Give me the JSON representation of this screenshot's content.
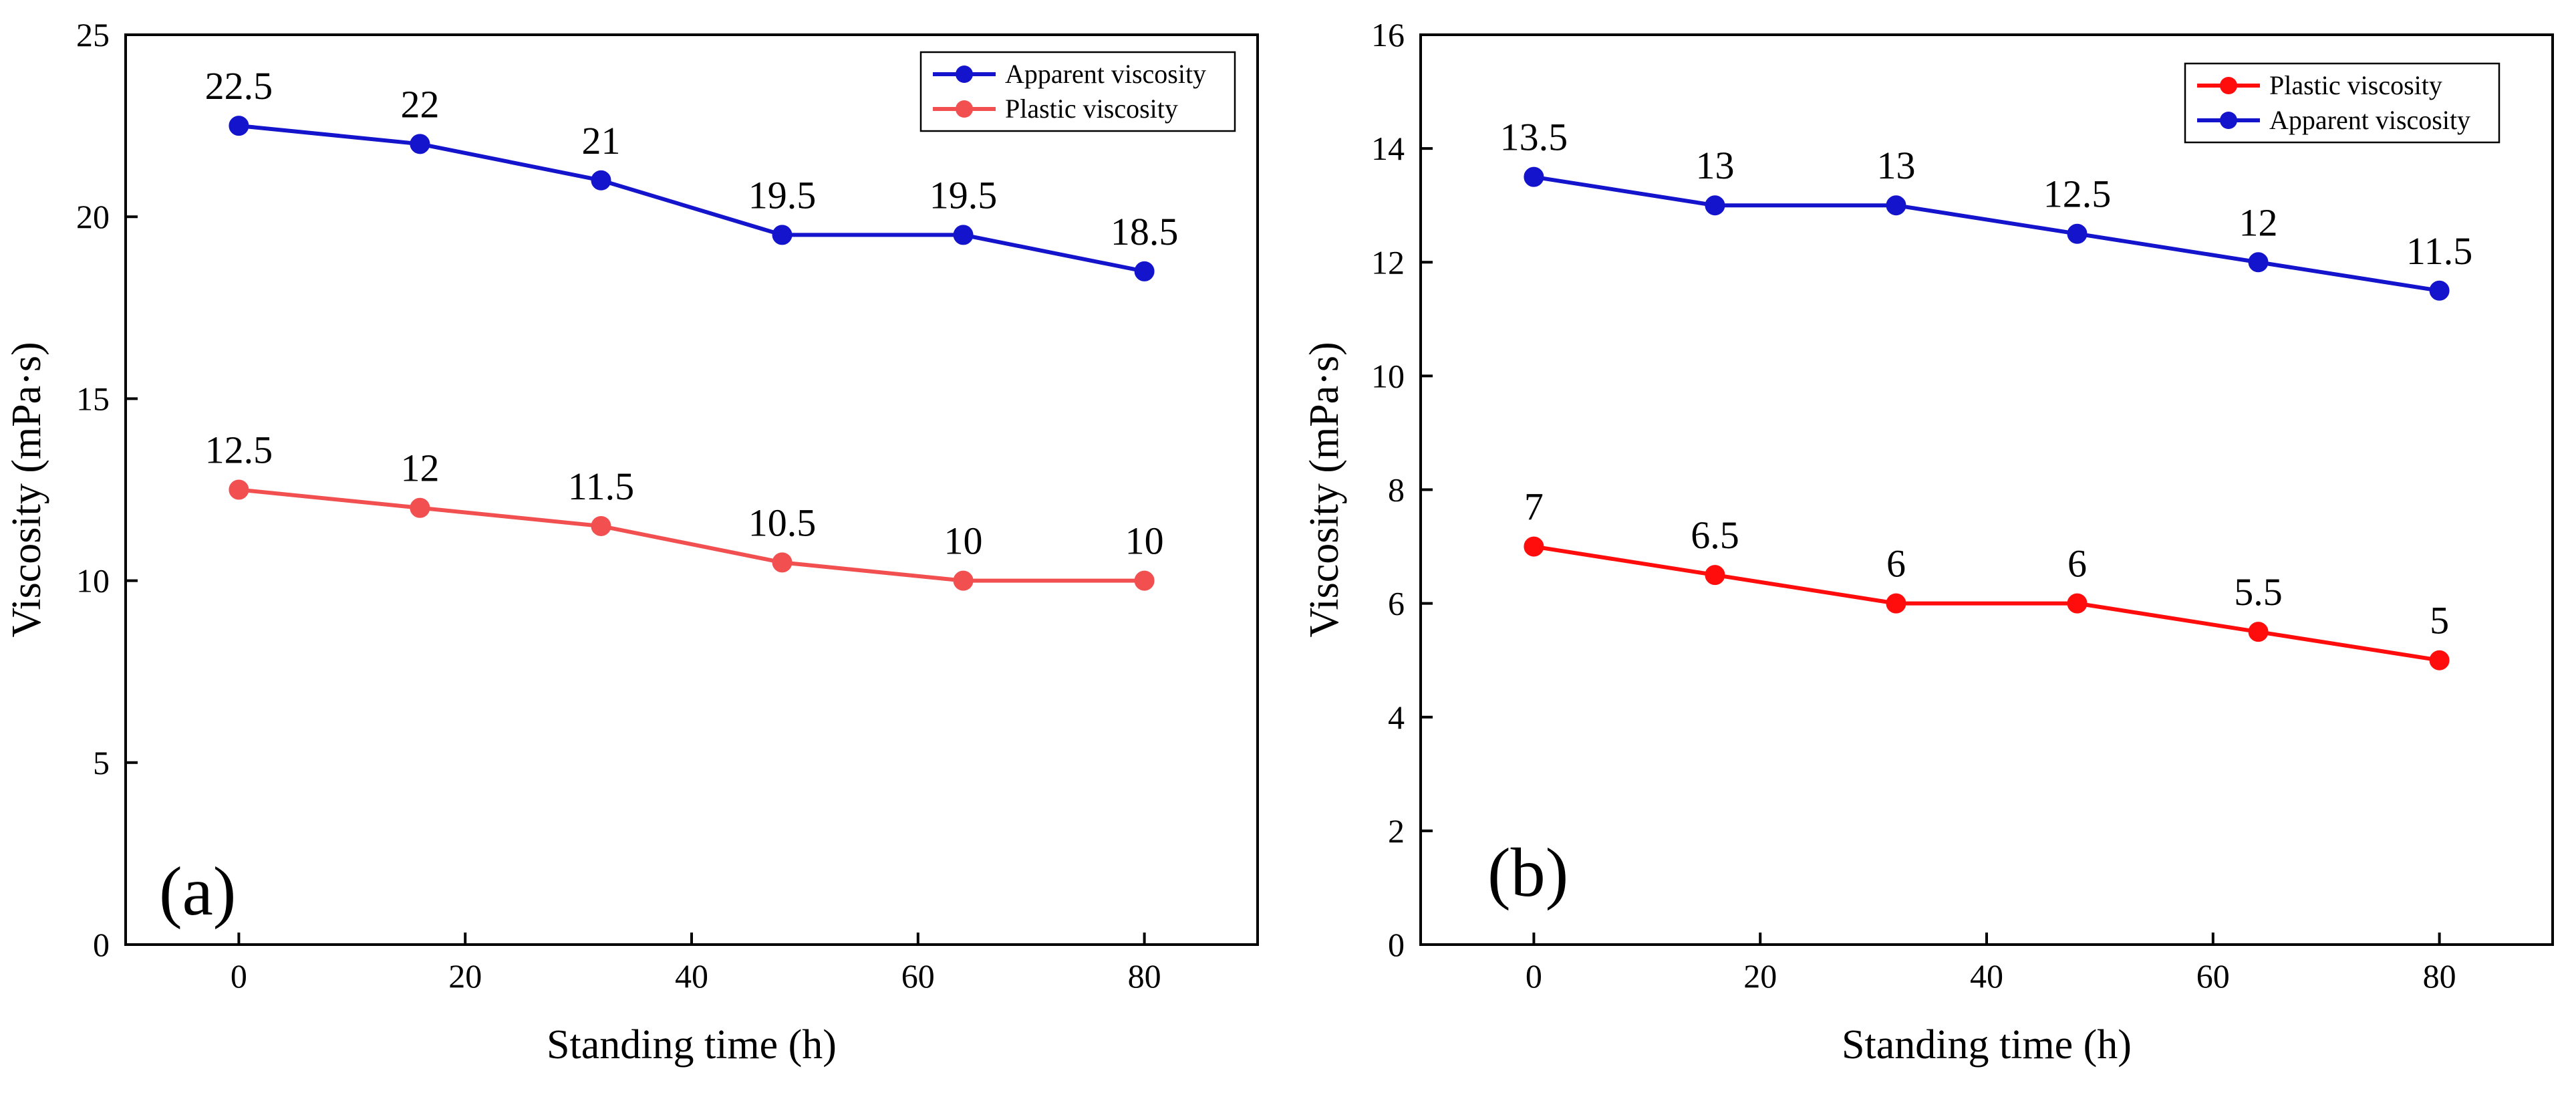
{
  "chart_data": [
    {
      "type": "line",
      "panel_label": "(a)",
      "xlabel": "Standing time (h)",
      "ylabel": "Viscosity (mPa·s)",
      "xlim": [
        -10,
        90
      ],
      "ylim": [
        0,
        25
      ],
      "xticks": [
        0,
        20,
        40,
        60,
        80
      ],
      "yticks": [
        0,
        5,
        10,
        15,
        20,
        25
      ],
      "x": [
        0,
        16,
        32,
        48,
        64,
        80
      ],
      "legend_position": "top-right",
      "series": [
        {
          "name": "Apparent viscosity",
          "color": "#1414cc",
          "values": [
            22.5,
            22,
            21,
            19.5,
            19.5,
            18.5
          ],
          "labels": [
            "22.5",
            "22",
            "21",
            "19.5",
            "19.5",
            "18.5"
          ]
        },
        {
          "name": "Plastic viscosity",
          "color": "#f25050",
          "values": [
            12.5,
            12,
            11.5,
            10.5,
            10,
            10
          ],
          "labels": [
            "12.5",
            "12",
            "11.5",
            "10.5",
            "10",
            "10"
          ]
        }
      ]
    },
    {
      "type": "line",
      "panel_label": "(b)",
      "xlabel": "Standing time (h)",
      "ylabel": "Viscosity (mPa·s)",
      "xlim": [
        -10,
        90
      ],
      "ylim": [
        0,
        16
      ],
      "xticks": [
        0,
        20,
        40,
        60,
        80
      ],
      "yticks": [
        0,
        2,
        4,
        6,
        8,
        10,
        12,
        14,
        16
      ],
      "x": [
        0,
        16,
        32,
        48,
        64,
        80
      ],
      "legend_position": "top-right",
      "series": [
        {
          "name": "Plastic viscosity",
          "color": "#ff0d0d",
          "values": [
            7,
            6.5,
            6,
            6,
            5.5,
            5
          ],
          "labels": [
            "7",
            "6.5",
            "6",
            "6",
            "5.5",
            "5"
          ]
        },
        {
          "name": "Apparent viscosity",
          "color": "#1414cc",
          "values": [
            13.5,
            13,
            13,
            12.5,
            12,
            11.5
          ],
          "labels": [
            "13.5",
            "13",
            "13",
            "12.5",
            "12",
            "11.5"
          ]
        }
      ]
    }
  ]
}
